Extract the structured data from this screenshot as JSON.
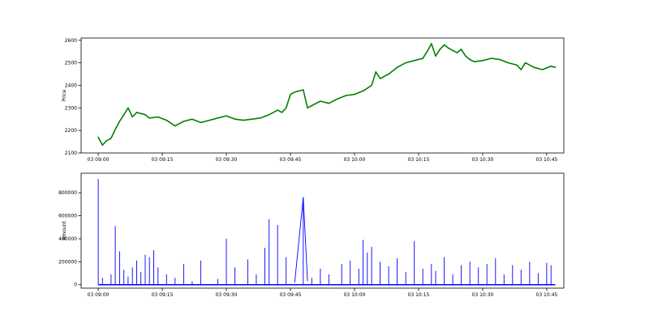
{
  "chart_data": [
    {
      "type": "line",
      "ylabel": "Price",
      "xlim": [
        "03 08:56",
        "03 10:49"
      ],
      "ylim": [
        2100,
        2610
      ],
      "y_ticks": [
        2100,
        2200,
        2300,
        2400,
        2500,
        2600
      ],
      "x_ticks": [
        "03 09:00",
        "03 09:15",
        "03 09:30",
        "03 09:45",
        "03 10:00",
        "03 10:15",
        "03 10:30",
        "03 10:45"
      ],
      "grid": false,
      "series": [
        {
          "color": "#008000",
          "x": [
            "03 09:00",
            "03 09:01",
            "03 09:02",
            "03 09:03",
            "03 09:04",
            "03 09:05",
            "03 09:06",
            "03 09:07",
            "03 09:08",
            "03 09:09",
            "03 09:10",
            "03 09:11",
            "03 09:12",
            "03 09:14",
            "03 09:16",
            "03 09:18",
            "03 09:20",
            "03 09:22",
            "03 09:24",
            "03 09:26",
            "03 09:28",
            "03 09:30",
            "03 09:32",
            "03 09:34",
            "03 09:36",
            "03 09:38",
            "03 09:40",
            "03 09:42",
            "03 09:43",
            "03 09:44",
            "03 09:45",
            "03 09:46",
            "03 09:47",
            "03 09:48",
            "03 09:49",
            "03 09:50",
            "03 09:52",
            "03 09:54",
            "03 09:56",
            "03 09:58",
            "03 10:00",
            "03 10:02",
            "03 10:04",
            "03 10:05",
            "03 10:06",
            "03 10:08",
            "03 10:10",
            "03 10:12",
            "03 10:14",
            "03 10:16",
            "03 10:17",
            "03 10:18",
            "03 10:19",
            "03 10:20",
            "03 10:21",
            "03 10:22",
            "03 10:23",
            "03 10:24",
            "03 10:25",
            "03 10:26",
            "03 10:27",
            "03 10:28",
            "03 10:30",
            "03 10:32",
            "03 10:34",
            "03 10:36",
            "03 10:38",
            "03 10:39",
            "03 10:40",
            "03 10:42",
            "03 10:44",
            "03 10:46",
            "03 10:47"
          ],
          "y": [
            2170,
            2135,
            2155,
            2165,
            2205,
            2240,
            2270,
            2300,
            2260,
            2280,
            2275,
            2270,
            2255,
            2260,
            2245,
            2220,
            2240,
            2250,
            2235,
            2245,
            2255,
            2265,
            2250,
            2245,
            2250,
            2255,
            2270,
            2290,
            2280,
            2300,
            2360,
            2370,
            2375,
            2380,
            2300,
            2310,
            2330,
            2320,
            2340,
            2355,
            2360,
            2375,
            2400,
            2460,
            2430,
            2450,
            2480,
            2500,
            2510,
            2520,
            2550,
            2585,
            2530,
            2560,
            2580,
            2565,
            2555,
            2545,
            2560,
            2530,
            2515,
            2505,
            2510,
            2520,
            2515,
            2500,
            2490,
            2470,
            2500,
            2480,
            2470,
            2485,
            2480
          ]
        }
      ]
    },
    {
      "type": "line",
      "ylabel": "Amount",
      "xlim": [
        "03 08:56",
        "03 10:49"
      ],
      "ylim": [
        -30000,
        970000
      ],
      "y_ticks": [
        0,
        200000,
        400000,
        600000,
        800000
      ],
      "x_ticks": [
        "03 09:00",
        "03 09:15",
        "03 09:30",
        "03 09:45",
        "03 10:00",
        "03 10:15",
        "03 10:30",
        "03 10:45"
      ],
      "grid": false,
      "series": [
        {
          "color": "#0000ff",
          "spikes": [
            [
              "03 09:00",
              920000
            ],
            [
              "03 09:01",
              60000
            ],
            [
              "03 09:03",
              90000
            ],
            [
              "03 09:04",
              510000
            ],
            [
              "03 09:05",
              290000
            ],
            [
              "03 09:06",
              130000
            ],
            [
              "03 09:07",
              70000
            ],
            [
              "03 09:08",
              150000
            ],
            [
              "03 09:09",
              210000
            ],
            [
              "03 09:10",
              110000
            ],
            [
              "03 09:11",
              260000
            ],
            [
              "03 09:12",
              240000
            ],
            [
              "03 09:13",
              300000
            ],
            [
              "03 09:14",
              150000
            ],
            [
              "03 09:16",
              90000
            ],
            [
              "03 09:18",
              60000
            ],
            [
              "03 09:20",
              180000
            ],
            [
              "03 09:22",
              30000
            ],
            [
              "03 09:24",
              210000
            ],
            [
              "03 09:28",
              50000
            ],
            [
              "03 09:30",
              400000
            ],
            [
              "03 09:32",
              150000
            ],
            [
              "03 09:35",
              220000
            ],
            [
              "03 09:37",
              90000
            ],
            [
              "03 09:39",
              320000
            ],
            [
              "03 09:40",
              570000
            ],
            [
              "03 09:42",
              520000
            ],
            [
              "03 09:44",
              240000
            ],
            [
              "03 09:48",
              760000
            ],
            [
              "03 09:50",
              60000
            ],
            [
              "03 09:52",
              140000
            ],
            [
              "03 09:54",
              90000
            ],
            [
              "03 09:57",
              180000
            ],
            [
              "03 09:59",
              210000
            ],
            [
              "03 10:01",
              140000
            ],
            [
              "03 10:02",
              390000
            ],
            [
              "03 10:03",
              280000
            ],
            [
              "03 10:04",
              330000
            ],
            [
              "03 10:06",
              200000
            ],
            [
              "03 10:08",
              160000
            ],
            [
              "03 10:10",
              230000
            ],
            [
              "03 10:12",
              110000
            ],
            [
              "03 10:14",
              380000
            ],
            [
              "03 10:16",
              140000
            ],
            [
              "03 10:18",
              180000
            ],
            [
              "03 10:19",
              120000
            ],
            [
              "03 10:21",
              240000
            ],
            [
              "03 10:23",
              90000
            ],
            [
              "03 10:25",
              170000
            ],
            [
              "03 10:27",
              200000
            ],
            [
              "03 10:29",
              150000
            ],
            [
              "03 10:31",
              180000
            ],
            [
              "03 10:33",
              230000
            ],
            [
              "03 10:35",
              90000
            ],
            [
              "03 10:37",
              170000
            ],
            [
              "03 10:39",
              130000
            ],
            [
              "03 10:41",
              200000
            ],
            [
              "03 10:43",
              100000
            ],
            [
              "03 10:45",
              190000
            ],
            [
              "03 10:46",
              170000
            ]
          ],
          "gap_line": [
            [
              "03 09:46",
              20000
            ],
            [
              "03 09:48",
              760000
            ],
            [
              "03 09:49",
              30000
            ]
          ]
        }
      ]
    }
  ]
}
